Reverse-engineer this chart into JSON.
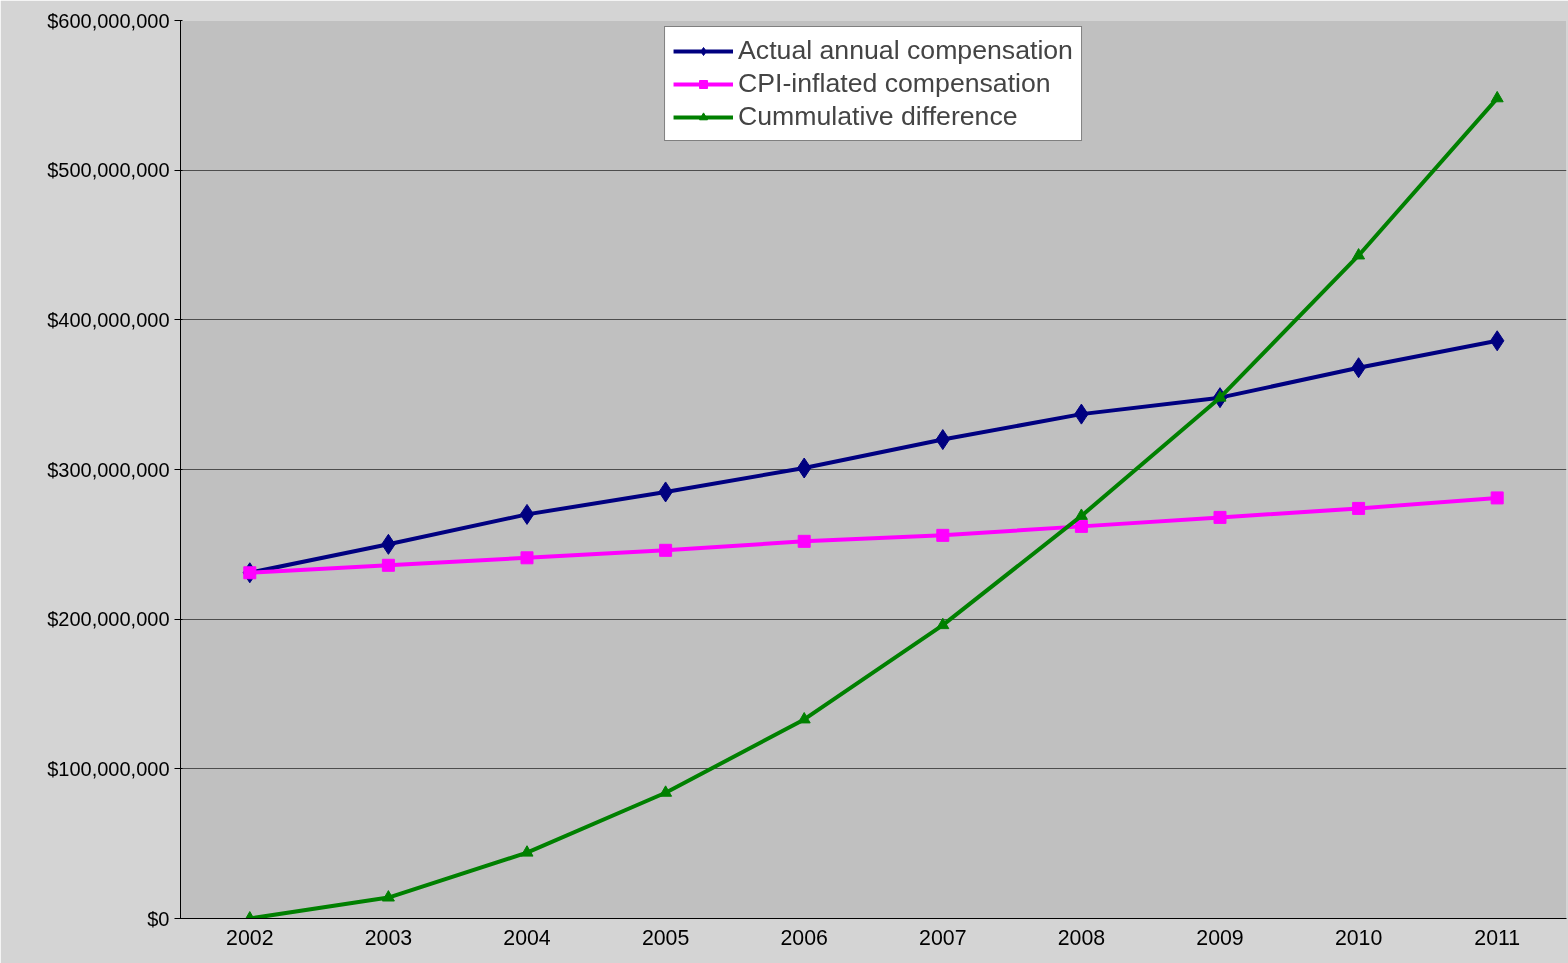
{
  "chart_data": {
    "type": "line",
    "categories": [
      "2002",
      "2003",
      "2004",
      "2005",
      "2006",
      "2007",
      "2008",
      "2009",
      "2010",
      "2011"
    ],
    "ylim": [
      0,
      600000000
    ],
    "yticks": [
      {
        "value": 0,
        "label": "$0"
      },
      {
        "value": 100000000,
        "label": "$100,000,000"
      },
      {
        "value": 200000000,
        "label": "$200,000,000"
      },
      {
        "value": 300000000,
        "label": "$300,000,000"
      },
      {
        "value": 400000000,
        "label": "$400,000,000"
      },
      {
        "value": 500000000,
        "label": "$500,000,000"
      },
      {
        "value": 600000000,
        "label": "$600,000,000"
      }
    ],
    "grid": "y",
    "legend": "top",
    "line_style": "solid",
    "series": [
      {
        "name": "Actual annual compensation",
        "color": "#000080",
        "marker": "diamond",
        "values": [
          231000000,
          250000000,
          270000000,
          285000000,
          301000000,
          320000000,
          337000000,
          348000000,
          368000000,
          386000000
        ]
      },
      {
        "name": "CPI-inflated compensation",
        "color": "#ff00ff",
        "marker": "square",
        "values": [
          231000000,
          236000000,
          241000000,
          246000000,
          252000000,
          256000000,
          262000000,
          268000000,
          274000000,
          281000000
        ]
      },
      {
        "name": "Cummulative difference",
        "color": "#008000",
        "marker": "triangle",
        "values": [
          0,
          14000000,
          44000000,
          84000000,
          133000000,
          196000000,
          269000000,
          348000000,
          443000000,
          548000000
        ]
      }
    ]
  }
}
